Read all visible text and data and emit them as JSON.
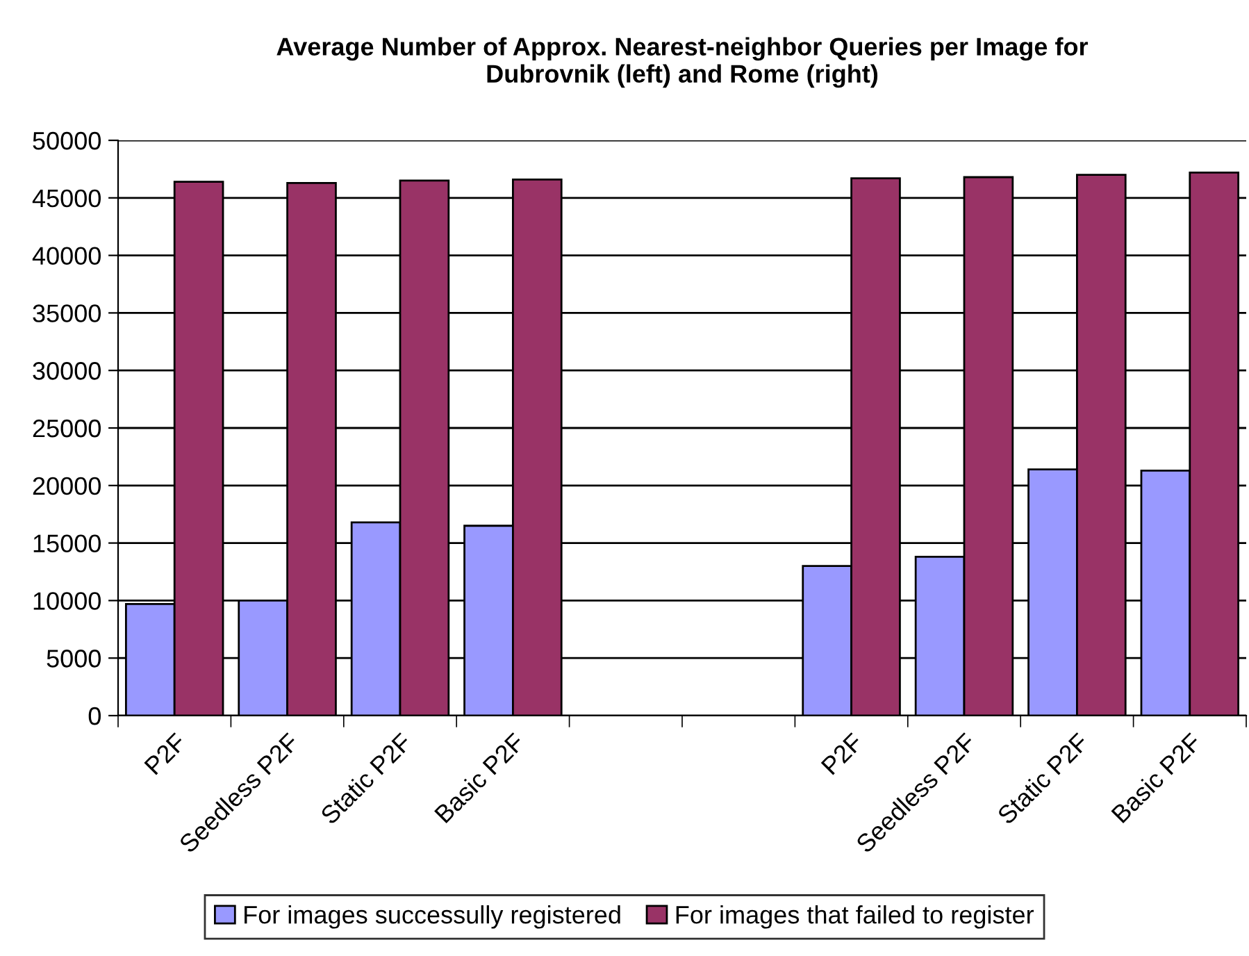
{
  "chart_data": {
    "type": "bar",
    "title": "Average Number of Approx. Nearest-neighbor Queries per Image for\nDubrovnik (left) and Rome (right)",
    "categories": [
      "P2F",
      "Seedless P2F",
      "Static P2F",
      "Basic P2F",
      null,
      null,
      "P2F",
      "Seedless P2F",
      "Static P2F",
      "Basic P2F"
    ],
    "series": [
      {
        "name": "For images successully registered",
        "color": "#9999ff",
        "values": [
          9700,
          10000,
          16800,
          16500,
          null,
          null,
          13000,
          13800,
          21400,
          21300
        ]
      },
      {
        "name": "For images that failed to register",
        "color": "#993366",
        "values": [
          46400,
          46300,
          46500,
          46600,
          null,
          null,
          46700,
          46800,
          47000,
          47200
        ]
      }
    ],
    "ylim": [
      0,
      50000
    ],
    "yticks": [
      0,
      5000,
      10000,
      15000,
      20000,
      25000,
      30000,
      35000,
      40000,
      45000,
      50000
    ],
    "grid": "y",
    "legend": "bottom"
  }
}
